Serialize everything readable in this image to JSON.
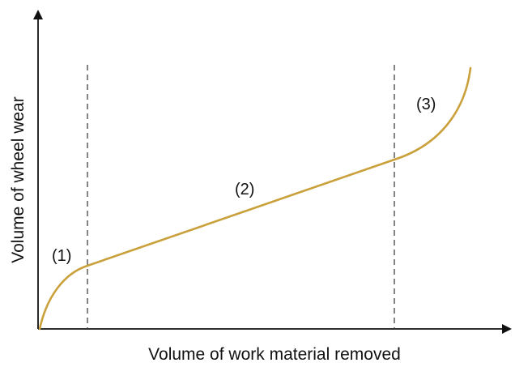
{
  "diagram": {
    "x_axis_label": "Volume of work material removed",
    "y_axis_label": "Volume of wheel wear",
    "regions": [
      {
        "id": "region-1",
        "label": "(1)"
      },
      {
        "id": "region-2",
        "label": "(2)"
      },
      {
        "id": "region-3",
        "label": "(3)"
      }
    ],
    "curve_color": "#c9a03a",
    "axis_color": "#111111",
    "divider_color": "#333333"
  }
}
